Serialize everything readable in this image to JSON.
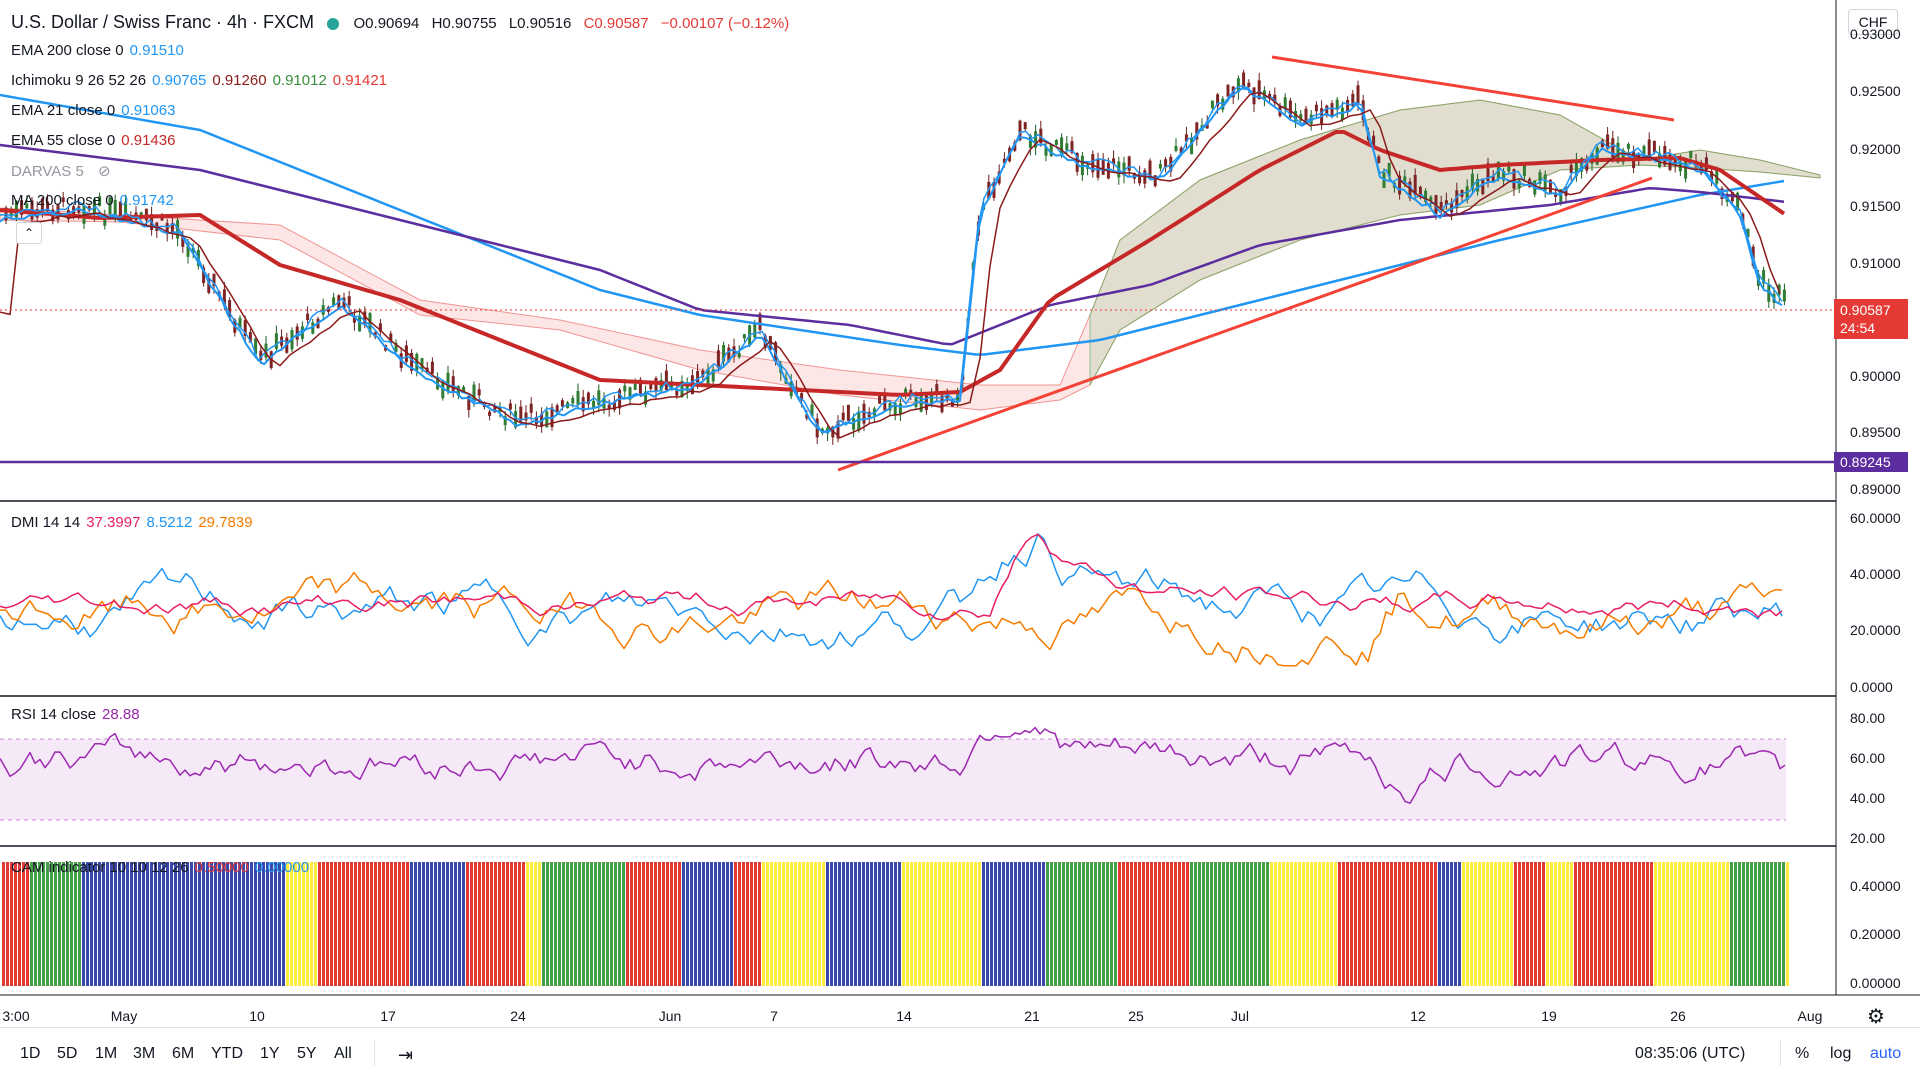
{
  "header": {
    "symbol": "U.S. Dollar / Swiss Franc · 4h · FXCM",
    "open": "O0.90694",
    "high": "H0.90755",
    "low": "L0.90516",
    "close": "C0.90587",
    "change": "−0.00107 (−0.12%)"
  },
  "legend": {
    "ema200": {
      "label": "EMA 200 close 0",
      "value": "0.91510"
    },
    "ichimoku": {
      "label": "Ichimoku 9 26 52 26",
      "values": [
        "0.90765",
        "0.91260",
        "0.91012",
        "0.91421"
      ]
    },
    "ema21": {
      "label": "EMA 21 close 0",
      "value": "0.91063"
    },
    "ema55": {
      "label": "EMA 55 close 0",
      "value": "0.91436"
    },
    "darvas": {
      "label": "DARVAS 5"
    },
    "ma200": {
      "label": "MA 200 close 0",
      "value": "0.91742"
    },
    "dmi": {
      "label": "DMI 14 14",
      "values": [
        "37.3997",
        "8.5212",
        "29.7839"
      ]
    },
    "rsi": {
      "label": "RSI 14 close",
      "value": "28.88"
    },
    "cam": {
      "label": "CAM indicator 10 10 12 26",
      "values": [
        "0.50000",
        "0.00000"
      ]
    }
  },
  "currency_button": "CHF",
  "price_axis": [
    "0.93000",
    "0.92500",
    "0.92000",
    "0.91500",
    "0.91000",
    "0.90000",
    "0.89500",
    "0.89000"
  ],
  "price_tags": {
    "last": "0.90587",
    "countdown": "24:54",
    "level": "0.89245"
  },
  "dmi_axis": [
    "60.0000",
    "40.0000",
    "20.0000",
    "0.0000"
  ],
  "rsi_axis": [
    "80.00",
    "60.00",
    "40.00",
    "20.00"
  ],
  "cam_axis": [
    "0.40000",
    "0.20000",
    "0.00000"
  ],
  "time_axis": [
    "3:00",
    "May",
    "10",
    "17",
    "24",
    "Jun",
    "7",
    "14",
    "21",
    "25",
    "Jul",
    "12",
    "19",
    "26",
    "Aug"
  ],
  "timeframes": [
    "1D",
    "5D",
    "1M",
    "3M",
    "6M",
    "YTD",
    "1Y",
    "5Y",
    "All"
  ],
  "clock": "08:35:06 (UTC)",
  "scale_controls": [
    "%",
    "log",
    "auto"
  ],
  "colors": {
    "ema200": "#2196f3",
    "ichimoku_conv": "#2196f3",
    "ichimoku_base": "#8b1a1a",
    "ema21": "#2196f3",
    "ema55": "#c62828",
    "ma200": "#5b2d9e",
    "dmi_plus": "#2196f3",
    "dmi_minus": "#f57c00",
    "adx": "#e91e63",
    "rsi": "#9c27b0",
    "trendline": "#f44336",
    "level_line": "#5b2d9e",
    "last_price": "#e53935"
  }
}
